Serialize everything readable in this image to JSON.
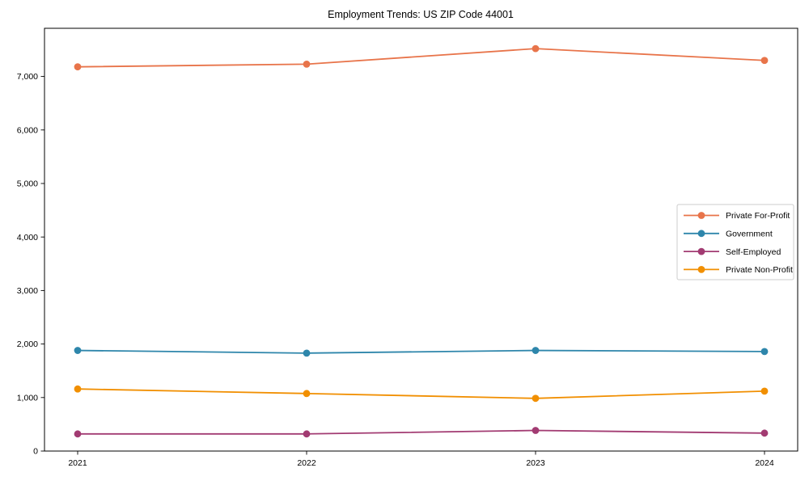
{
  "figure": {
    "background_color": "#ffffff",
    "axes_edge_color": "#000000"
  },
  "chart_data": {
    "type": "line",
    "title": "Employment Trends: US ZIP Code 44001",
    "xlabel": "",
    "ylabel": "",
    "x": [
      2021,
      2022,
      2023,
      2024
    ],
    "x_tick_labels": [
      "2021",
      "2022",
      "2023",
      "2024"
    ],
    "y_ticks": [
      0,
      1000,
      2000,
      3000,
      4000,
      5000,
      6000,
      7000
    ],
    "y_tick_labels": [
      "0",
      "1,000",
      "2,000",
      "3,000",
      "4,000",
      "5,000",
      "6,000",
      "7,000"
    ],
    "ylim": [
      0,
      7900
    ],
    "grid": false,
    "marker": "circle",
    "legend_position": "center-right",
    "series": [
      {
        "name": "Private For-Profit",
        "color": "#E8744A",
        "values": [
          7180,
          7230,
          7520,
          7300
        ]
      },
      {
        "name": "Government",
        "color": "#2E86AB",
        "values": [
          1880,
          1830,
          1880,
          1860
        ]
      },
      {
        "name": "Self-Employed",
        "color": "#A23B72",
        "values": [
          320,
          320,
          385,
          335
        ]
      },
      {
        "name": "Private Non-Profit",
        "color": "#F18F01",
        "values": [
          1160,
          1075,
          985,
          1120
        ]
      }
    ]
  }
}
